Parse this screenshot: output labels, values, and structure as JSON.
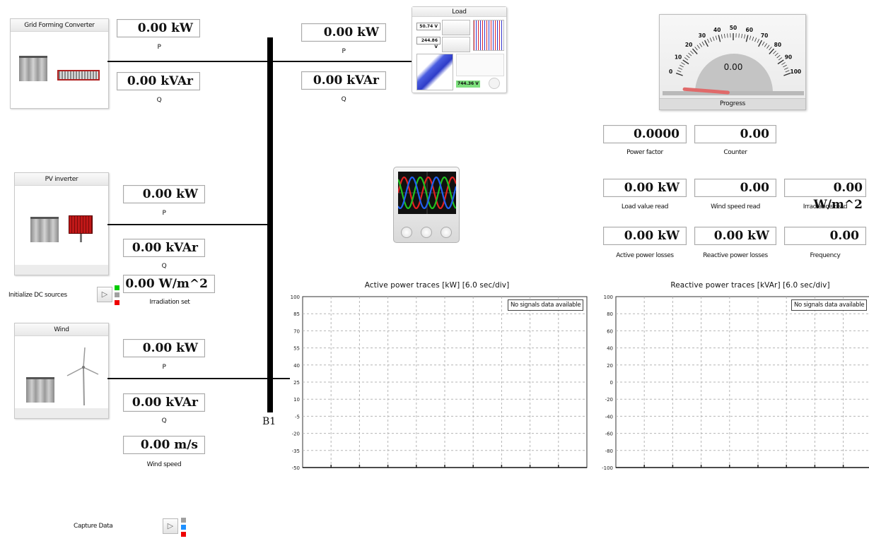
{
  "gfc": {
    "title": "Grid Forming Converter",
    "p_value": "0.00 kW",
    "p_label": "P",
    "q_value": "0.00 kVAr",
    "q_label": "Q"
  },
  "pv": {
    "title": "PV inverter",
    "p_value": "0.00 kW",
    "p_label": "P",
    "q_value": "0.00 kVAr",
    "q_label": "Q",
    "irr_value": "0.00 W/m^2",
    "irr_label": "Irradiation set"
  },
  "init": {
    "label": "Initialize DC sources",
    "leds": [
      "#00cc00",
      "#a0a0a0",
      "#ee0000"
    ]
  },
  "wind": {
    "title": "Wind",
    "p_value": "0.00 kW",
    "p_label": "P",
    "q_value": "0.00 kVAr",
    "q_label": "Q",
    "speed_value": "0.00 m/s",
    "speed_label": "Wind speed"
  },
  "bus": {
    "label": "B1"
  },
  "load": {
    "title": "Load",
    "p_value": "0.00 kW",
    "p_label": "P",
    "q_value": "0.00 kVAr",
    "q_label": "Q",
    "thumb_v1": "50.74 V",
    "thumb_v2": "244.86 V",
    "thumb_v3": "744.36 V"
  },
  "gauge": {
    "title": "Progress",
    "value": "0.00",
    "progress": 0.0,
    "ticks": [
      "0",
      "10",
      "20",
      "30",
      "40",
      "50",
      "60",
      "70",
      "80",
      "90",
      "100"
    ]
  },
  "measurements": [
    {
      "value": "0.0000",
      "label": "Power factor"
    },
    {
      "value": "0.00",
      "label": "Counter"
    },
    {
      "value": "0.00 kW",
      "label": "Load value read"
    },
    {
      "value": "0.00",
      "label": "Wind speed read"
    },
    {
      "value": "0.00 W/m^2",
      "label": "Irradiance read"
    },
    {
      "value": "0.00 kW",
      "label": "Active power losses"
    },
    {
      "value": "0.00 kW",
      "label": "Reactive power losses"
    },
    {
      "value": "0.00",
      "label": "Frequency"
    }
  ],
  "capture": {
    "label": "Capture Data",
    "leds": [
      "#a0a0a0",
      "#1e90ff",
      "#ee0000"
    ]
  },
  "chart_data": [
    {
      "type": "line",
      "title": "Active power traces [kW] [6.0 sec/div]",
      "ylim": [
        -50,
        100
      ],
      "yticks": [
        "100",
        "85",
        "70",
        "55",
        "40",
        "25",
        "10",
        "-5",
        "-20",
        "-35",
        "-50"
      ],
      "series": [],
      "annotation": "No signals data available",
      "grid": true
    },
    {
      "type": "line",
      "title": "Reactive power traces [kVAr] [6.0 sec/div]",
      "ylim": [
        -100,
        100
      ],
      "yticks": [
        "100",
        "80",
        "60",
        "40",
        "20",
        "0",
        "-20",
        "-40",
        "-60",
        "-80",
        "-100"
      ],
      "series": [],
      "annotation": "No signals data available",
      "grid": true
    }
  ]
}
